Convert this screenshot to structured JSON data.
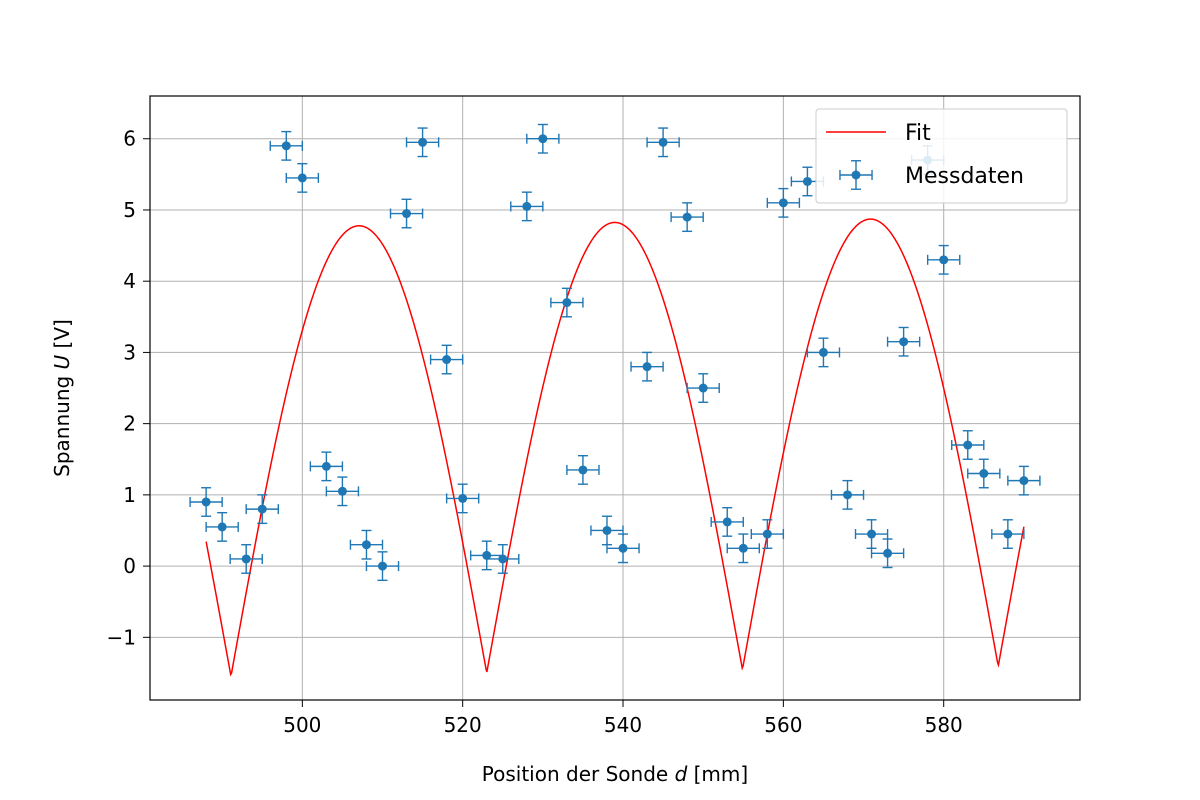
{
  "chart_data": {
    "type": "scatter",
    "xlabel_text": "Position der Sonde ",
    "xlabel_var": "d",
    "xlabel_unit": " [mm]",
    "ylabel_text": "Spannung ",
    "ylabel_var": "U",
    "ylabel_unit": " [V]",
    "xlim": [
      481,
      597
    ],
    "ylim": [
      -1.88,
      6.6
    ],
    "xticks": [
      500,
      520,
      540,
      560,
      580
    ],
    "yticks": [
      -1,
      0,
      1,
      2,
      3,
      4,
      5,
      6
    ],
    "ytick_labels": [
      "−1",
      "0",
      "1",
      "2",
      "3",
      "4",
      "5",
      "6"
    ],
    "grid": true,
    "legend": {
      "position": "upper right",
      "entries": [
        "Fit",
        "Messdaten"
      ]
    },
    "colors": {
      "fit": "#ff0000",
      "data": "#1f77b4"
    },
    "series": [
      {
        "name": "Messdaten",
        "kind": "errorbar",
        "xerr": 2,
        "yerr": 0.2,
        "points": [
          [
            488,
            0.9
          ],
          [
            490,
            0.55
          ],
          [
            493,
            0.1
          ],
          [
            495,
            0.8
          ],
          [
            498,
            5.9
          ],
          [
            500,
            5.45
          ],
          [
            503,
            1.4
          ],
          [
            505,
            1.05
          ],
          [
            508,
            0.3
          ],
          [
            510,
            0.0
          ],
          [
            513,
            4.95
          ],
          [
            515,
            5.95
          ],
          [
            518,
            2.9
          ],
          [
            520,
            0.95
          ],
          [
            523,
            0.15
          ],
          [
            525,
            0.1
          ],
          [
            528,
            5.05
          ],
          [
            530,
            6.0
          ],
          [
            533,
            3.7
          ],
          [
            535,
            1.35
          ],
          [
            538,
            0.5
          ],
          [
            540,
            0.25
          ],
          [
            543,
            2.8
          ],
          [
            545,
            5.95
          ],
          [
            548,
            4.9
          ],
          [
            550,
            2.5
          ],
          [
            553,
            0.62
          ],
          [
            555,
            0.25
          ],
          [
            558,
            0.45
          ],
          [
            560,
            5.1
          ],
          [
            563,
            5.4
          ],
          [
            565,
            3.0
          ],
          [
            568,
            1.0
          ],
          [
            571,
            0.45
          ],
          [
            573,
            0.18
          ],
          [
            575,
            3.15
          ],
          [
            578,
            5.7
          ],
          [
            580,
            4.3
          ],
          [
            583,
            1.7
          ],
          [
            585,
            1.3
          ],
          [
            588,
            0.45
          ],
          [
            590,
            1.2
          ]
        ]
      },
      {
        "name": "Fit",
        "kind": "line",
        "model": {
          "amplitude": 3.15,
          "period": 31.9,
          "phase_x": 491.1,
          "offset_start": 1.6,
          "offset_end": 1.75,
          "x_start": 488,
          "x_end": 590
        }
      }
    ]
  }
}
